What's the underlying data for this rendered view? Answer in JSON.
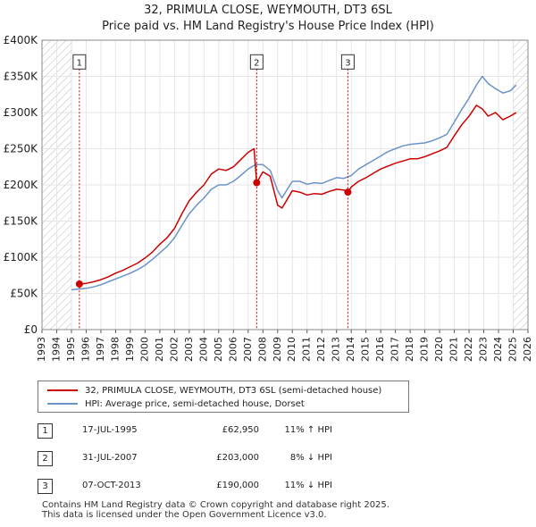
{
  "header": {
    "title": "32, PRIMULA CLOSE, WEYMOUTH, DT3 6SL",
    "subtitle": "Price paid vs. HM Land Registry's House Price Index (HPI)"
  },
  "chart_data": {
    "type": "line",
    "title": "32, PRIMULA CLOSE, WEYMOUTH, DT3 6SL",
    "subtitle": "Price paid vs. HM Land Registry's House Price Index (HPI)",
    "xlabel": "",
    "ylabel": "",
    "xlim": [
      1993,
      2026
    ],
    "ylim": [
      0,
      400000
    ],
    "grid": true,
    "x_ticks": [
      "1993",
      "1994",
      "1995",
      "1996",
      "1997",
      "1998",
      "1999",
      "2000",
      "2001",
      "2002",
      "2003",
      "2004",
      "2005",
      "2006",
      "2007",
      "2008",
      "2009",
      "2010",
      "2011",
      "2012",
      "2013",
      "2014",
      "2015",
      "2016",
      "2017",
      "2018",
      "2019",
      "2020",
      "2021",
      "2022",
      "2023",
      "2024",
      "2025",
      "2026"
    ],
    "y_ticks": [
      {
        "value": 0,
        "label": "£0"
      },
      {
        "value": 50000,
        "label": "£50K"
      },
      {
        "value": 100000,
        "label": "£100K"
      },
      {
        "value": 150000,
        "label": "£150K"
      },
      {
        "value": 200000,
        "label": "£200K"
      },
      {
        "value": 250000,
        "label": "£250K"
      },
      {
        "value": 300000,
        "label": "£300K"
      },
      {
        "value": 350000,
        "label": "£350K"
      },
      {
        "value": 400000,
        "label": "£400K"
      }
    ],
    "hatched_ranges": [
      [
        1993,
        1995.0
      ],
      [
        2025.0,
        2026
      ]
    ],
    "series": [
      {
        "name": "32, PRIMULA CLOSE, WEYMOUTH, DT3 6SL (semi-detached house)",
        "color": "#cc0000",
        "x": [
          1995.54,
          1996.0,
          1996.5,
          1997.0,
          1997.5,
          1998.0,
          1998.5,
          1999.0,
          1999.5,
          2000.0,
          2000.5,
          2001.0,
          2001.5,
          2002.0,
          2002.5,
          2003.0,
          2003.5,
          2004.0,
          2004.5,
          2005.0,
          2005.5,
          2006.0,
          2006.5,
          2007.0,
          2007.4,
          2007.58,
          2008.0,
          2008.5,
          2009.0,
          2009.3,
          2009.6,
          2010.0,
          2010.5,
          2011.0,
          2011.5,
          2012.0,
          2012.5,
          2013.0,
          2013.5,
          2013.77,
          2014.0,
          2014.5,
          2015.0,
          2015.5,
          2016.0,
          2016.5,
          2017.0,
          2017.5,
          2018.0,
          2018.5,
          2019.0,
          2019.5,
          2020.0,
          2020.5,
          2021.0,
          2021.5,
          2022.0,
          2022.5,
          2022.9,
          2023.3,
          2023.8,
          2024.3,
          2024.8,
          2025.2
        ],
        "values": [
          62950,
          64000,
          66000,
          69000,
          73000,
          78000,
          82000,
          87000,
          92000,
          99000,
          107000,
          118000,
          127000,
          140000,
          160000,
          178000,
          190000,
          200000,
          215000,
          222000,
          220000,
          225000,
          235000,
          245000,
          250000,
          203000,
          218000,
          212000,
          172000,
          168000,
          178000,
          192000,
          190000,
          186000,
          188000,
          187000,
          191000,
          194000,
          193000,
          190000,
          197000,
          205000,
          210000,
          216000,
          222000,
          226000,
          230000,
          233000,
          236000,
          236000,
          239000,
          243000,
          247000,
          252000,
          268000,
          283000,
          295000,
          310000,
          305000,
          295000,
          300000,
          290000,
          295000,
          300000
        ]
      },
      {
        "name": "HPI: Average price, semi-detached house, Dorset",
        "color": "#6b93c9",
        "x": [
          1995.0,
          1995.5,
          1996.0,
          1996.5,
          1997.0,
          1997.5,
          1998.0,
          1998.5,
          1999.0,
          1999.5,
          2000.0,
          2000.5,
          2001.0,
          2001.5,
          2002.0,
          2002.5,
          2003.0,
          2003.5,
          2004.0,
          2004.5,
          2005.0,
          2005.5,
          2006.0,
          2006.5,
          2007.0,
          2007.5,
          2008.0,
          2008.5,
          2009.0,
          2009.3,
          2009.6,
          2010.0,
          2010.5,
          2011.0,
          2011.5,
          2012.0,
          2012.5,
          2013.0,
          2013.5,
          2014.0,
          2014.5,
          2015.0,
          2015.5,
          2016.0,
          2016.5,
          2017.0,
          2017.5,
          2018.0,
          2018.5,
          2019.0,
          2019.5,
          2020.0,
          2020.5,
          2021.0,
          2021.5,
          2022.0,
          2022.5,
          2022.9,
          2023.3,
          2023.8,
          2024.3,
          2024.8,
          2025.2
        ],
        "values": [
          55000,
          56000,
          57000,
          59000,
          62000,
          66000,
          70000,
          74000,
          78000,
          83000,
          89000,
          97000,
          106000,
          115000,
          127000,
          144000,
          160000,
          172000,
          182000,
          194000,
          200000,
          200000,
          205000,
          213000,
          222000,
          228000,
          228000,
          220000,
          192000,
          182000,
          192000,
          205000,
          205000,
          201000,
          203000,
          202000,
          206000,
          210000,
          209000,
          213000,
          222000,
          228000,
          234000,
          240000,
          246000,
          250000,
          254000,
          256000,
          257000,
          258000,
          261000,
          265000,
          270000,
          287000,
          304000,
          320000,
          338000,
          350000,
          340000,
          333000,
          327000,
          330000,
          338000
        ]
      }
    ],
    "markers": [
      {
        "label": "1",
        "x": 1995.54,
        "y": 62950,
        "box_y": 370000
      },
      {
        "label": "2",
        "x": 2007.58,
        "y": 203000,
        "box_y": 370000
      },
      {
        "label": "3",
        "x": 2013.77,
        "y": 190000,
        "box_y": 370000
      }
    ]
  },
  "legend": {
    "items": [
      {
        "label": "32, PRIMULA CLOSE, WEYMOUTH, DT3 6SL (semi-detached house)",
        "color": "#cc0000"
      },
      {
        "label": "HPI: Average price, semi-detached house, Dorset",
        "color": "#6b93c9"
      }
    ]
  },
  "transactions": [
    {
      "num": "1",
      "date": "17-JUL-1995",
      "price": "£62,950",
      "hpi": "11% ↑ HPI"
    },
    {
      "num": "2",
      "date": "31-JUL-2007",
      "price": "£203,000",
      "hpi": "8% ↓ HPI"
    },
    {
      "num": "3",
      "date": "07-OCT-2013",
      "price": "£190,000",
      "hpi": "11% ↓ HPI"
    }
  ],
  "footer": {
    "line1": "Contains HM Land Registry data © Crown copyright and database right 2025.",
    "line2": "This data is licensed under the Open Government Licence v3.0."
  }
}
